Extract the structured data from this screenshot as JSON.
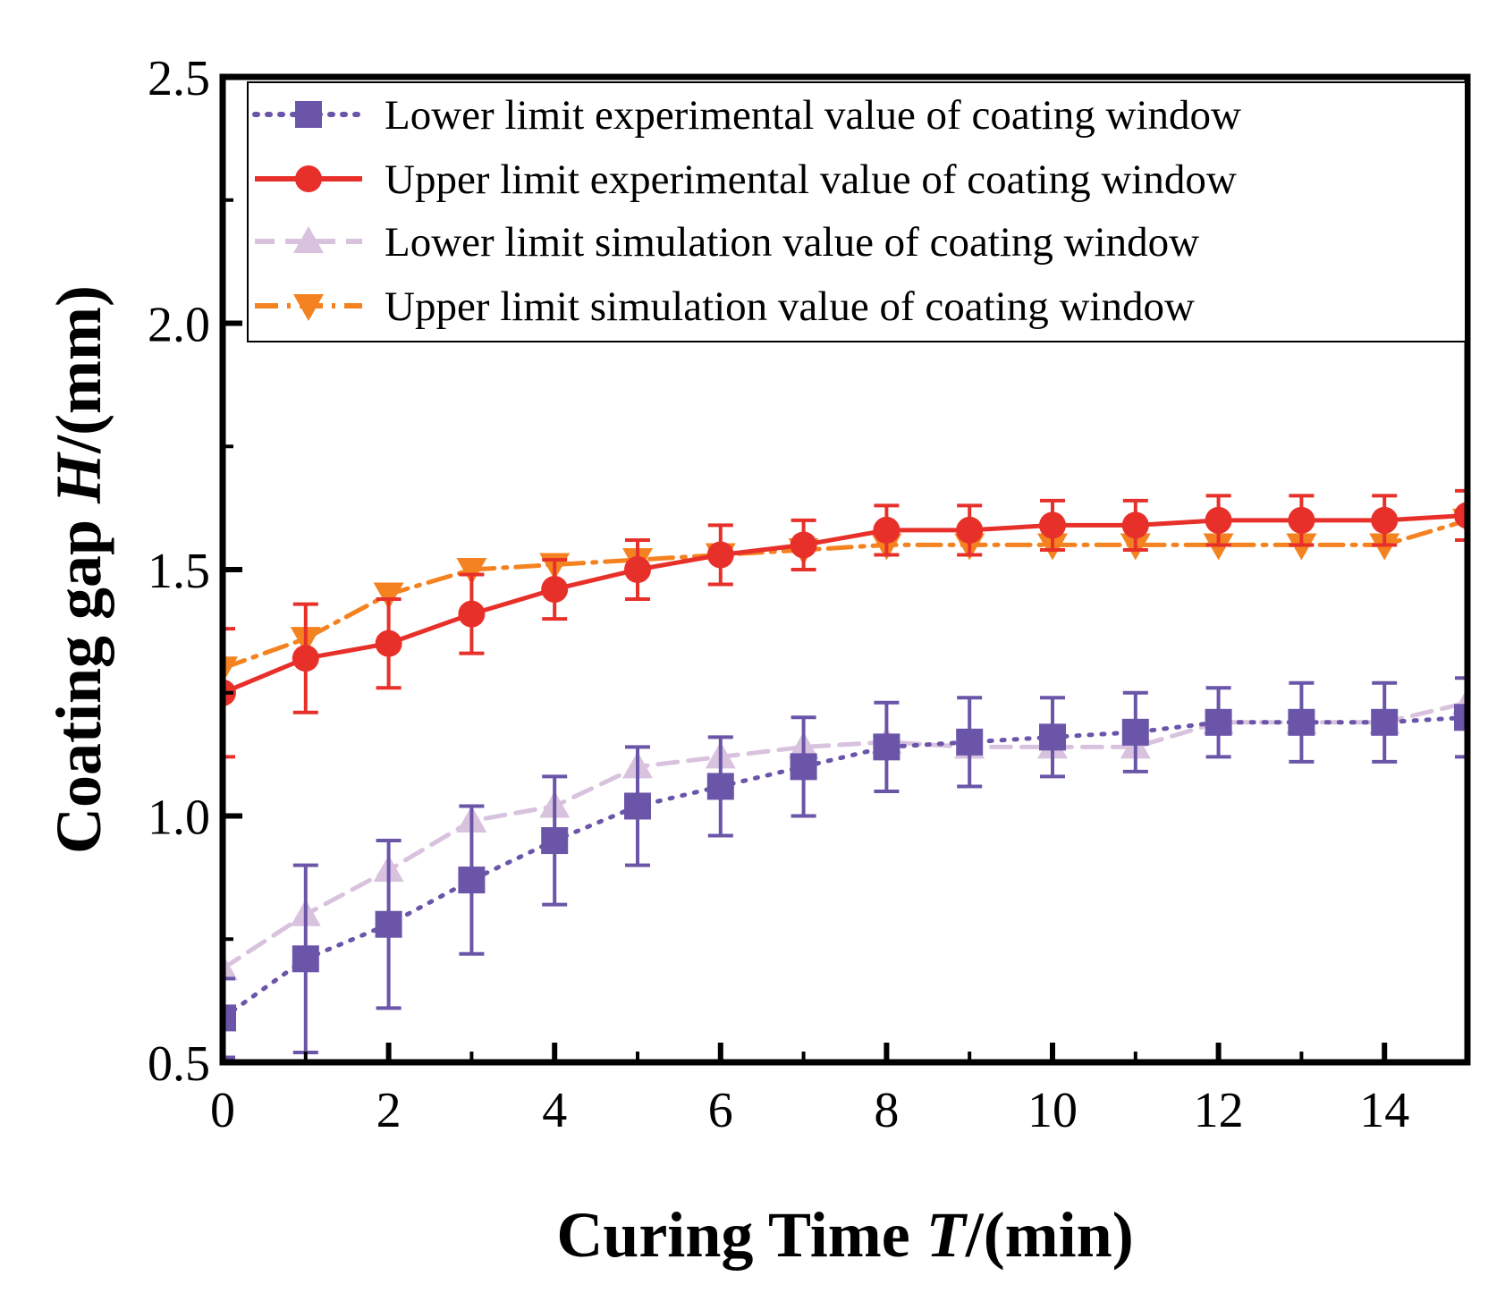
{
  "chart_data": {
    "type": "line",
    "x_label": {
      "prefix": "Curing Time ",
      "symbol": "T",
      "unit": "/(min)"
    },
    "y_label": {
      "prefix": "Coating gap ",
      "symbol": "H",
      "unit": "/(mm)"
    },
    "xlim": [
      0,
      15
    ],
    "ylim": [
      0.5,
      2.5
    ],
    "x_ticks": [
      "0",
      "2",
      "4",
      "6",
      "8",
      "10",
      "12",
      "14"
    ],
    "y_ticks": [
      "0.5",
      "1.0",
      "1.5",
      "2.0",
      "2.5"
    ],
    "legend_position": "top",
    "grid": false,
    "series": [
      {
        "name": "Lower limit experimental value of coating window",
        "color": "#6a55a8",
        "marker": "square",
        "line_style": "dotted",
        "x": [
          0,
          1,
          2,
          3,
          4,
          5,
          6,
          7,
          8,
          9,
          10,
          11,
          12,
          13,
          14,
          15
        ],
        "y": [
          0.59,
          0.71,
          0.78,
          0.87,
          0.95,
          1.02,
          1.06,
          1.1,
          1.14,
          1.15,
          1.16,
          1.17,
          1.19,
          1.19,
          1.19,
          1.2
        ],
        "error": [
          0.08,
          0.19,
          0.17,
          0.15,
          0.13,
          0.12,
          0.1,
          0.1,
          0.09,
          0.09,
          0.08,
          0.08,
          0.07,
          0.08,
          0.08,
          0.08
        ]
      },
      {
        "name": "Upper limit experimental value of coating window",
        "color": "#e8302a",
        "marker": "circle",
        "line_style": "solid",
        "x": [
          0,
          1,
          2,
          3,
          4,
          5,
          6,
          7,
          8,
          9,
          10,
          11,
          12,
          13,
          14,
          15
        ],
        "y": [
          1.25,
          1.32,
          1.35,
          1.41,
          1.46,
          1.5,
          1.53,
          1.55,
          1.58,
          1.58,
          1.59,
          1.59,
          1.6,
          1.6,
          1.6,
          1.61
        ],
        "error": [
          0.13,
          0.11,
          0.09,
          0.08,
          0.06,
          0.06,
          0.06,
          0.05,
          0.05,
          0.05,
          0.05,
          0.05,
          0.05,
          0.05,
          0.05,
          0.05
        ]
      },
      {
        "name": "Lower limit simulation value of coating window",
        "color": "#d8c2de",
        "marker": "triangle-up",
        "line_style": "dashed",
        "x": [
          0,
          1,
          2,
          3,
          4,
          5,
          6,
          7,
          8,
          9,
          10,
          11,
          12,
          13,
          14,
          15
        ],
        "y": [
          0.69,
          0.8,
          0.89,
          0.99,
          1.02,
          1.1,
          1.12,
          1.14,
          1.15,
          1.14,
          1.14,
          1.14,
          1.19,
          1.19,
          1.19,
          1.23
        ]
      },
      {
        "name": "Upper limit simulation value of coating window",
        "color": "#f58220",
        "marker": "triangle-down",
        "line_style": "dash-dot",
        "x": [
          0,
          1,
          2,
          3,
          4,
          5,
          6,
          7,
          8,
          9,
          10,
          11,
          12,
          13,
          14,
          15
        ],
        "y": [
          1.3,
          1.36,
          1.45,
          1.5,
          1.51,
          1.52,
          1.53,
          1.54,
          1.55,
          1.55,
          1.55,
          1.55,
          1.55,
          1.55,
          1.55,
          1.6
        ]
      }
    ]
  }
}
